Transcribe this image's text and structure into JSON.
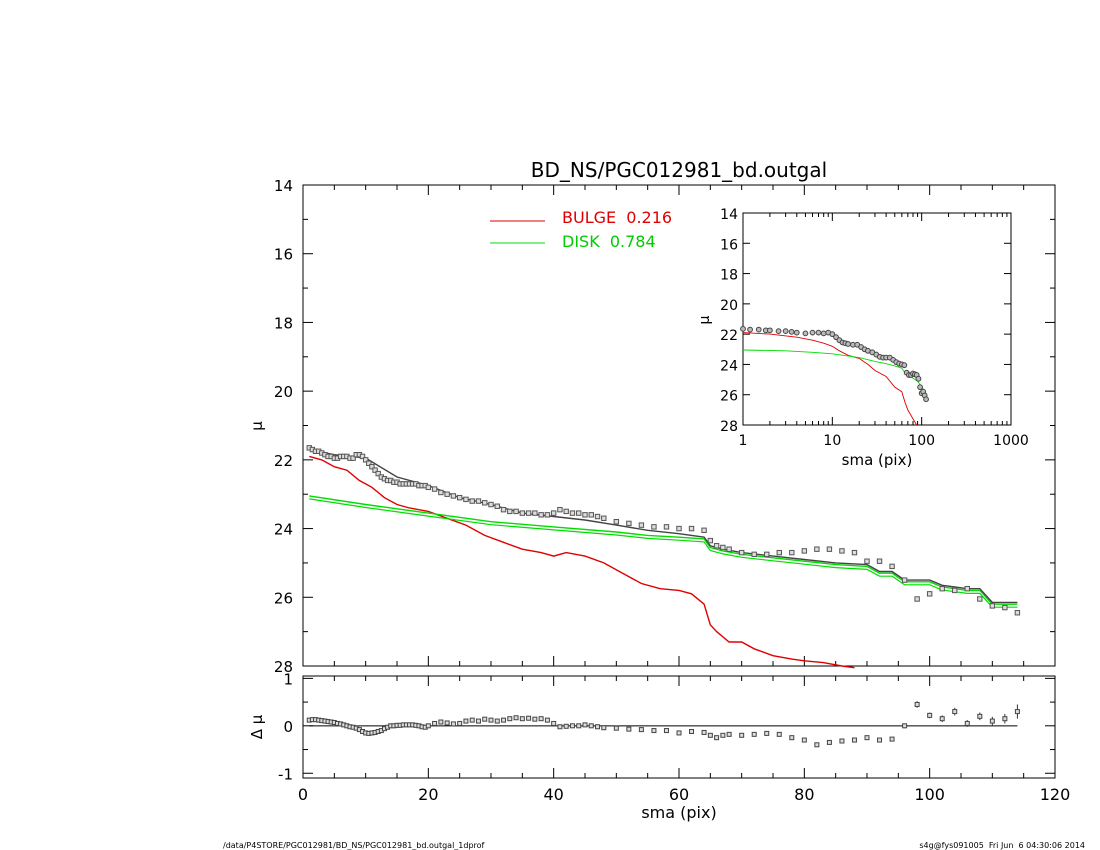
{
  "footer": {
    "left": "/data/P4STORE/PGC012981/BD_NS/PGC012981_bd.outgal_1dprof",
    "right": "s4g@fys091005  Fri Jun  6 04:30:06 2014"
  },
  "colors": {
    "bulge": "#e00000",
    "disk": "#00dd00",
    "data": "#444444",
    "axis": "#000000"
  },
  "chart_data": [
    {
      "id": "main",
      "type": "line",
      "title": "BD_NS/PGC012981_bd.outgal",
      "xlabel": "",
      "ylabel": "μ",
      "xlim": [
        0,
        120
      ],
      "ylim": [
        28,
        14
      ],
      "yticks": [
        14,
        16,
        18,
        20,
        22,
        24,
        26,
        28
      ],
      "legend": [
        {
          "name": "BULGE  0.216",
          "color": "#e00000"
        },
        {
          "name": "DISK  0.784",
          "color": "#00dd00"
        }
      ],
      "series": [
        {
          "name": "BULGE",
          "color": "#e00000",
          "x": [
            1,
            3,
            5,
            7,
            9,
            11,
            13,
            15,
            17,
            20,
            23,
            26,
            29,
            32,
            35,
            38,
            40,
            42,
            45,
            48,
            51,
            54,
            57,
            60,
            62,
            64,
            65,
            66,
            68,
            70,
            72,
            75,
            78,
            80,
            83,
            86,
            88
          ],
          "y": [
            21.9,
            22.0,
            22.2,
            22.3,
            22.6,
            22.8,
            23.1,
            23.3,
            23.4,
            23.5,
            23.7,
            23.9,
            24.2,
            24.4,
            24.6,
            24.7,
            24.8,
            24.7,
            24.8,
            25.0,
            25.3,
            25.6,
            25.75,
            25.8,
            25.9,
            26.2,
            26.8,
            27.0,
            27.3,
            27.3,
            27.5,
            27.7,
            27.8,
            27.85,
            27.9,
            28.0,
            28.05
          ]
        },
        {
          "name": "DISK",
          "color": "#00dd00",
          "x": [
            1,
            10,
            20,
            30,
            40,
            50,
            55,
            60,
            64,
            65,
            67,
            70,
            75,
            80,
            85,
            90,
            92,
            94,
            96,
            100,
            102,
            104,
            106,
            108,
            110,
            112,
            114
          ],
          "y": [
            23.05,
            23.3,
            23.55,
            23.8,
            23.95,
            24.1,
            24.2,
            24.25,
            24.3,
            24.55,
            24.65,
            24.75,
            24.85,
            24.95,
            25.05,
            25.1,
            25.3,
            25.3,
            25.55,
            25.55,
            25.7,
            25.75,
            25.8,
            25.8,
            26.2,
            26.2,
            26.2
          ]
        },
        {
          "name": "MODEL",
          "color": "#444444",
          "x": [
            1,
            5,
            10,
            15,
            20,
            25,
            30,
            35,
            40,
            45,
            50,
            55,
            60,
            64,
            65,
            67,
            70,
            75,
            80,
            85,
            90,
            92,
            94,
            96,
            100,
            102,
            104,
            106,
            108,
            110,
            112,
            114
          ],
          "y": [
            21.7,
            21.85,
            21.95,
            22.5,
            22.75,
            23.1,
            23.3,
            23.55,
            23.65,
            23.75,
            23.9,
            24.05,
            24.15,
            24.25,
            24.5,
            24.6,
            24.7,
            24.8,
            24.9,
            25.0,
            25.05,
            25.25,
            25.25,
            25.5,
            25.5,
            25.65,
            25.7,
            25.75,
            25.75,
            26.15,
            26.15,
            26.15
          ]
        }
      ],
      "points": {
        "name": "data",
        "x": [
          1,
          1.5,
          2,
          2.5,
          3,
          3.5,
          4,
          4.5,
          5,
          5.5,
          6,
          6.5,
          7,
          7.5,
          8,
          8.5,
          9,
          9.5,
          10,
          10.5,
          11,
          11.5,
          12,
          12.5,
          13,
          13.5,
          14,
          14.5,
          15,
          15.5,
          16,
          16.5,
          17,
          17.5,
          18,
          18.5,
          19,
          19.5,
          20,
          21,
          22,
          23,
          24,
          25,
          26,
          27,
          28,
          29,
          30,
          31,
          32,
          33,
          34,
          35,
          36,
          37,
          38,
          39,
          40,
          41,
          42,
          43,
          44,
          45,
          46,
          47,
          48,
          50,
          52,
          54,
          56,
          58,
          60,
          62,
          64,
          65,
          66,
          67,
          68,
          70,
          72,
          74,
          76,
          78,
          80,
          82,
          84,
          86,
          88,
          90,
          92,
          94,
          96,
          98,
          100,
          102,
          104,
          106,
          108,
          110,
          112,
          114
        ],
        "y": [
          21.65,
          21.7,
          21.75,
          21.75,
          21.8,
          21.85,
          21.9,
          21.9,
          21.95,
          21.95,
          21.9,
          21.9,
          21.9,
          21.95,
          21.95,
          21.85,
          21.85,
          21.9,
          22.0,
          22.1,
          22.2,
          22.3,
          22.4,
          22.5,
          22.55,
          22.6,
          22.6,
          22.65,
          22.65,
          22.7,
          22.7,
          22.7,
          22.7,
          22.7,
          22.7,
          22.75,
          22.75,
          22.75,
          22.8,
          22.85,
          22.95,
          23.0,
          23.05,
          23.1,
          23.15,
          23.2,
          23.2,
          23.25,
          23.3,
          23.35,
          23.45,
          23.5,
          23.5,
          23.55,
          23.55,
          23.55,
          23.6,
          23.6,
          23.55,
          23.45,
          23.5,
          23.55,
          23.55,
          23.6,
          23.6,
          23.65,
          23.7,
          23.8,
          23.85,
          23.9,
          23.95,
          23.95,
          24.0,
          24.0,
          24.05,
          24.35,
          24.5,
          24.55,
          24.6,
          24.7,
          24.75,
          24.75,
          24.7,
          24.7,
          24.65,
          24.6,
          24.6,
          24.65,
          24.7,
          24.95,
          24.95,
          25.1,
          25.5,
          26.05,
          25.9,
          25.75,
          25.8,
          25.75,
          26.05,
          26.25,
          26.3,
          26.45
        ]
      }
    },
    {
      "id": "residual",
      "type": "scatter",
      "title": "",
      "xlabel": "sma (pix)",
      "ylabel": "Δ μ",
      "xlim": [
        0,
        120
      ],
      "ylim": [
        -1.1,
        1.05
      ],
      "xticks": [
        0,
        20,
        40,
        60,
        80,
        100,
        120
      ],
      "yticks": [
        -1,
        0,
        1
      ],
      "x": [
        1,
        1.5,
        2,
        2.5,
        3,
        3.5,
        4,
        4.5,
        5,
        5.5,
        6,
        6.5,
        7,
        7.5,
        8,
        8.5,
        9,
        9.5,
        10,
        10.5,
        11,
        11.5,
        12,
        12.5,
        13,
        13.5,
        14,
        14.5,
        15,
        15.5,
        16,
        16.5,
        17,
        17.5,
        18,
        18.5,
        19,
        19.5,
        20,
        21,
        22,
        23,
        24,
        25,
        26,
        27,
        28,
        29,
        30,
        31,
        32,
        33,
        34,
        35,
        36,
        37,
        38,
        39,
        40,
        41,
        42,
        43,
        44,
        45,
        46,
        47,
        48,
        50,
        52,
        54,
        56,
        58,
        60,
        62,
        64,
        65,
        66,
        67,
        68,
        70,
        72,
        74,
        76,
        78,
        80,
        82,
        84,
        86,
        88,
        90,
        92,
        94,
        96,
        98,
        100,
        102,
        104,
        106,
        108,
        110,
        112,
        114
      ],
      "y": [
        0.12,
        0.13,
        0.13,
        0.12,
        0.11,
        0.1,
        0.09,
        0.08,
        0.07,
        0.05,
        0.04,
        0.02,
        0.0,
        -0.02,
        -0.03,
        -0.05,
        -0.08,
        -0.12,
        -0.15,
        -0.16,
        -0.15,
        -0.14,
        -0.12,
        -0.1,
        -0.06,
        -0.03,
        0.0,
        0.0,
        0.01,
        0.01,
        0.02,
        0.02,
        0.02,
        0.02,
        0.01,
        0.0,
        -0.02,
        -0.03,
        0.0,
        0.05,
        0.08,
        0.06,
        0.04,
        0.05,
        0.1,
        0.12,
        0.1,
        0.14,
        0.12,
        0.1,
        0.12,
        0.15,
        0.17,
        0.15,
        0.16,
        0.14,
        0.15,
        0.12,
        0.05,
        -0.02,
        -0.01,
        0.0,
        0.0,
        0.02,
        0.0,
        -0.02,
        -0.04,
        -0.05,
        -0.07,
        -0.08,
        -0.1,
        -0.1,
        -0.15,
        -0.12,
        -0.14,
        -0.2,
        -0.25,
        -0.2,
        -0.18,
        -0.2,
        -0.18,
        -0.16,
        -0.18,
        -0.25,
        -0.3,
        -0.4,
        -0.35,
        -0.32,
        -0.3,
        -0.25,
        -0.3,
        -0.28,
        0.0,
        0.45,
        0.22,
        0.15,
        0.3,
        0.05,
        0.2,
        0.1,
        0.15,
        0.3
      ],
      "yerr": [
        0.03,
        0.03,
        0.03,
        0.03,
        0.03,
        0.03,
        0.03,
        0.03,
        0.03,
        0.03,
        0.03,
        0.03,
        0.03,
        0.03,
        0.03,
        0.03,
        0.03,
        0.03,
        0.03,
        0.03,
        0.03,
        0.03,
        0.03,
        0.03,
        0.03,
        0.03,
        0.03,
        0.03,
        0.03,
        0.03,
        0.03,
        0.03,
        0.03,
        0.03,
        0.03,
        0.03,
        0.03,
        0.03,
        0.03,
        0.03,
        0.03,
        0.03,
        0.03,
        0.03,
        0.03,
        0.03,
        0.03,
        0.03,
        0.03,
        0.03,
        0.03,
        0.03,
        0.03,
        0.03,
        0.03,
        0.03,
        0.03,
        0.03,
        0.03,
        0.03,
        0.03,
        0.03,
        0.03,
        0.03,
        0.03,
        0.03,
        0.03,
        0.03,
        0.03,
        0.03,
        0.03,
        0.03,
        0.03,
        0.03,
        0.03,
        0.03,
        0.03,
        0.03,
        0.03,
        0.03,
        0.03,
        0.03,
        0.03,
        0.03,
        0.03,
        0.03,
        0.03,
        0.03,
        0.03,
        0.03,
        0.03,
        0.03,
        0.05,
        0.07,
        0.06,
        0.07,
        0.08,
        0.07,
        0.08,
        0.09,
        0.1,
        0.15
      ]
    },
    {
      "id": "inset",
      "type": "line",
      "title": "",
      "xlabel": "sma (pix)",
      "ylabel": "μ",
      "xscale": "log",
      "xlim": [
        1,
        1000
      ],
      "ylim": [
        28,
        14
      ],
      "xticks": [
        1,
        10,
        100,
        1000
      ],
      "yticks": [
        14,
        16,
        18,
        20,
        22,
        24,
        26,
        28
      ],
      "series": [
        {
          "name": "BULGE",
          "color": "#e00000",
          "x": [
            1,
            2,
            4,
            6,
            8,
            10,
            12,
            15,
            20,
            25,
            30,
            40,
            50,
            60,
            65,
            70,
            80,
            88
          ],
          "y": [
            21.9,
            22.0,
            22.2,
            22.4,
            22.6,
            22.8,
            23.1,
            23.4,
            23.6,
            24.0,
            24.4,
            24.8,
            25.5,
            25.8,
            26.5,
            27.0,
            27.6,
            28.0
          ]
        },
        {
          "name": "DISK",
          "color": "#00dd00",
          "x": [
            1,
            3,
            6,
            10,
            20,
            30,
            40,
            50,
            60,
            65,
            70,
            80,
            90,
            100,
            110,
            114
          ],
          "y": [
            23.05,
            23.1,
            23.2,
            23.3,
            23.55,
            23.8,
            23.95,
            24.1,
            24.25,
            24.55,
            24.7,
            24.9,
            25.1,
            25.5,
            25.8,
            26.2
          ]
        }
      ],
      "points": {
        "name": "data",
        "x": [
          1,
          1.2,
          1.5,
          1.8,
          2,
          2.5,
          3,
          3.5,
          4,
          5,
          6,
          7,
          8,
          9,
          10,
          11,
          12,
          13,
          14,
          15,
          17,
          19,
          21,
          23,
          25,
          28,
          31,
          34,
          37,
          40,
          44,
          48,
          52,
          56,
          60,
          64,
          68,
          72,
          76,
          80,
          84,
          88,
          92,
          96,
          100,
          104,
          108,
          112
        ],
        "y": [
          21.65,
          21.7,
          21.7,
          21.75,
          21.75,
          21.8,
          21.8,
          21.85,
          21.9,
          21.95,
          21.9,
          21.9,
          21.95,
          21.9,
          22.0,
          22.2,
          22.4,
          22.55,
          22.6,
          22.65,
          22.7,
          22.7,
          22.85,
          23.0,
          23.1,
          23.2,
          23.35,
          23.5,
          23.55,
          23.55,
          23.55,
          23.7,
          23.85,
          23.95,
          24.0,
          24.05,
          24.55,
          24.7,
          24.7,
          24.6,
          24.65,
          24.7,
          24.95,
          25.5,
          25.9,
          25.8,
          26.05,
          26.3
        ]
      }
    }
  ]
}
